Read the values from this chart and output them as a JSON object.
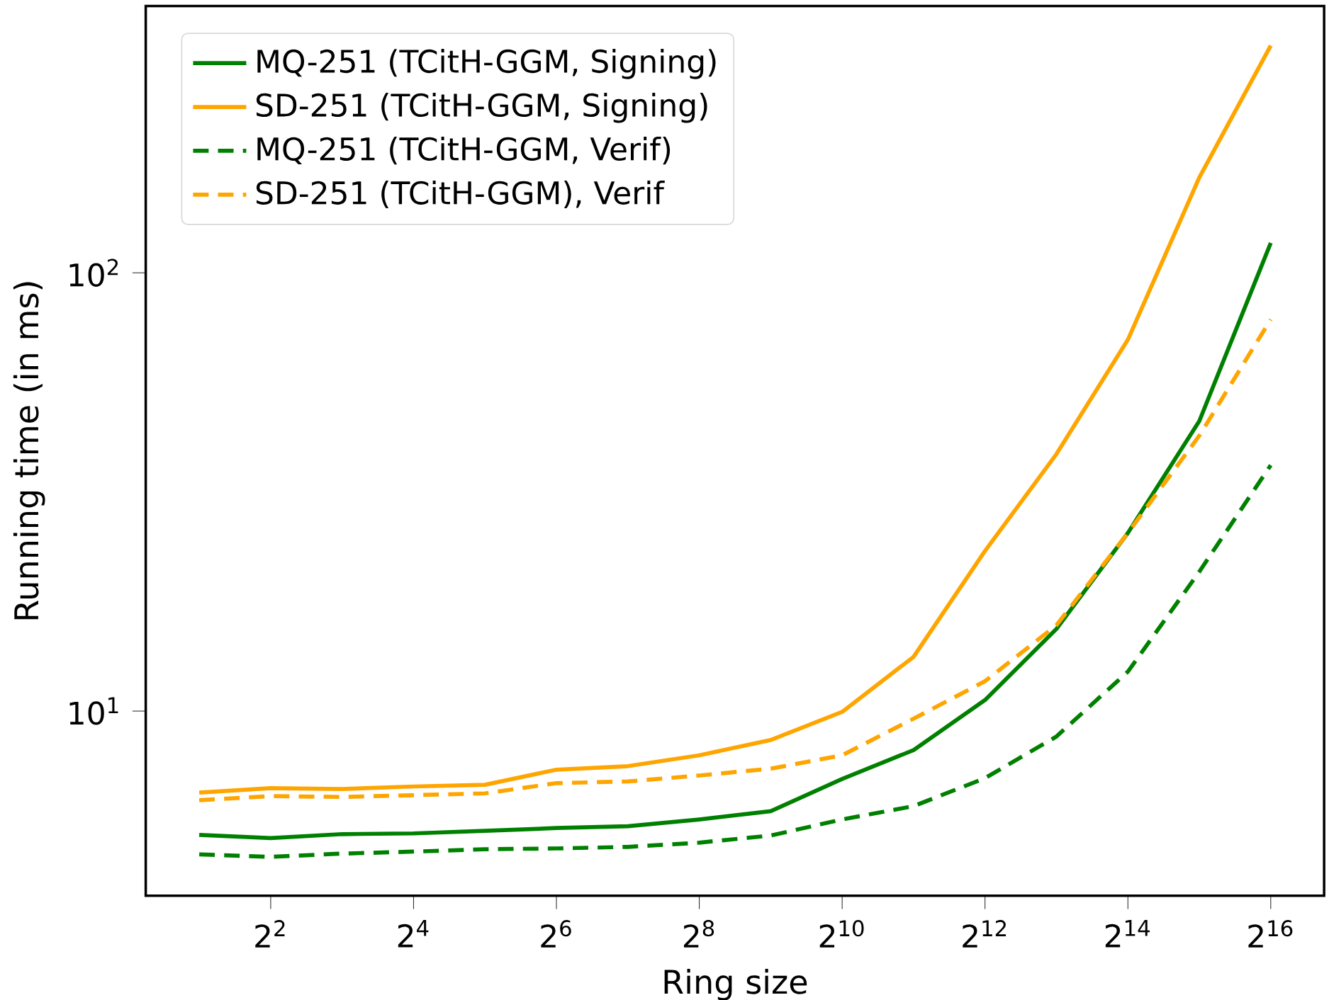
{
  "chart_data": {
    "type": "line",
    "xlabel": "Ring size",
    "ylabel": "Running time (in ms)",
    "log": "xy",
    "legend": "top left",
    "x": [
      2,
      4,
      8,
      16,
      32,
      64,
      128,
      256,
      512,
      1024,
      2048,
      4096,
      8192,
      16384,
      32768,
      65536
    ],
    "xlim": [
      1.19,
      110000
    ],
    "ylim": [
      3.79,
      406
    ],
    "xticks": [
      {
        "value": 4,
        "label": "2$^{2}$"
      },
      {
        "value": 16,
        "label": "2$^{4}$"
      },
      {
        "value": 64,
        "label": "2$^{6}$"
      },
      {
        "value": 256,
        "label": "2$^{8}$"
      },
      {
        "value": 1024,
        "label": "2$^{10}$"
      },
      {
        "value": 4096,
        "label": "2$^{12}$"
      },
      {
        "value": 16384,
        "label": "2$^{14}$"
      },
      {
        "value": 65536,
        "label": "2$^{16}$"
      }
    ],
    "yticks": [
      {
        "value": 10,
        "label": "10$^{1}$"
      },
      {
        "value": 100,
        "label": "10$^{2}$"
      }
    ],
    "series": [
      {
        "name": "MQ-251 (TCitH-GGM, Signing)",
        "color": "#008000",
        "line_style": "solid",
        "values": [
          5.22,
          5.13,
          5.24,
          5.26,
          5.33,
          5.41,
          5.46,
          5.66,
          5.91,
          7.0,
          8.15,
          10.6,
          15.4,
          25.5,
          45.9,
          117
        ]
      },
      {
        "name": "SD-251 (TCitH-GGM, Signing)",
        "color": "#ffa500",
        "line_style": "solid",
        "values": [
          6.52,
          6.67,
          6.64,
          6.73,
          6.79,
          7.35,
          7.49,
          7.93,
          8.59,
          9.96,
          13.3,
          23.2,
          38.6,
          70.4,
          165,
          330
        ]
      },
      {
        "name": "MQ-251 (TCitH-GGM, Verif)",
        "color": "#008000",
        "line_style": "dashed",
        "values": [
          4.71,
          4.65,
          4.73,
          4.78,
          4.84,
          4.86,
          4.9,
          5.01,
          5.2,
          5.66,
          6.07,
          7.03,
          8.75,
          12.3,
          20.8,
          36.4
        ]
      },
      {
        "name": "SD-251 (TCitH-GGM), Verif",
        "color": "#ffa500",
        "line_style": "dashed",
        "values": [
          6.26,
          6.4,
          6.37,
          6.43,
          6.49,
          6.85,
          6.91,
          7.13,
          7.39,
          7.93,
          9.61,
          11.7,
          15.7,
          25.5,
          42.5,
          78.3
        ]
      }
    ]
  }
}
